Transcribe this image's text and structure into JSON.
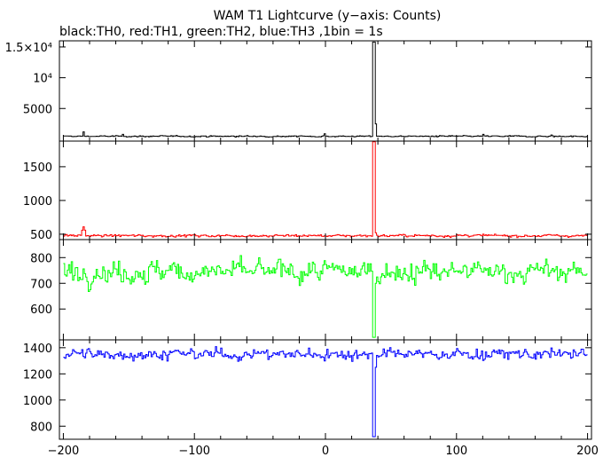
{
  "chart_data": {
    "type": "line",
    "title": "WAM T1 Lightcurve (y−axis: Counts)",
    "subtitle": "black:TH0, red:TH1, green:TH2, blue:TH3 ,1bin = 1s",
    "xlim": [
      -203,
      203
    ],
    "x_ticks": [
      -200,
      -100,
      0,
      100,
      200
    ],
    "x_tick_labels": [
      "−200",
      "−100",
      "0",
      "100",
      "200"
    ],
    "bin_seconds": 1,
    "grid": false,
    "panels": [
      {
        "name": "TH0",
        "color": "#000000",
        "ylim": [
          -300,
          16000
        ],
        "y_ticks": [
          5000,
          10000,
          15000
        ],
        "y_tick_labels": [
          "5000",
          "10⁴",
          "1.5×10⁴"
        ],
        "baseline": 480,
        "noise": 70,
        "features": [
          {
            "x": -185,
            "value": 1200
          },
          {
            "x": -155,
            "value": 800
          },
          {
            "x": -1,
            "value": 900
          },
          {
            "x": 36,
            "value": 15800
          },
          {
            "x": 37,
            "value": 15800
          },
          {
            "x": 38,
            "value": 2500
          },
          {
            "x": 120,
            "value": 800
          },
          {
            "x": 172,
            "value": 700
          }
        ]
      },
      {
        "name": "TH1",
        "color": "#ff0000",
        "ylim": [
          420,
          1880
        ],
        "y_ticks": [
          500,
          1000,
          1500
        ],
        "y_tick_labels": [
          "500",
          "1000",
          "1500"
        ],
        "baseline": 478,
        "noise": 12,
        "features": [
          {
            "x": -186,
            "value": 560
          },
          {
            "x": -185,
            "value": 610
          },
          {
            "x": -184,
            "value": 560
          },
          {
            "x": 36,
            "value": 1870
          },
          {
            "x": 37,
            "value": 1870
          },
          {
            "x": 38,
            "value": 520
          }
        ]
      },
      {
        "name": "TH2",
        "color": "#00ff00",
        "ylim": [
          480,
          870
        ],
        "y_ticks": [
          600,
          700,
          800
        ],
        "y_tick_labels": [
          "600",
          "700",
          "800"
        ],
        "baseline": 745,
        "noise": 28,
        "features": [
          {
            "x": 36,
            "value": 490
          },
          {
            "x": 37,
            "value": 490
          },
          {
            "x": 38,
            "value": 700
          }
        ]
      },
      {
        "name": "TH3",
        "color": "#0000ff",
        "ylim": [
          700,
          1460
        ],
        "y_ticks": [
          800,
          1000,
          1200,
          1400
        ],
        "y_tick_labels": [
          "800",
          "1000",
          "1200",
          "1400"
        ],
        "baseline": 1350,
        "noise": 28,
        "features": [
          {
            "x": 36,
            "value": 720
          },
          {
            "x": 37,
            "value": 720
          },
          {
            "x": 38,
            "value": 1250
          }
        ]
      }
    ]
  }
}
